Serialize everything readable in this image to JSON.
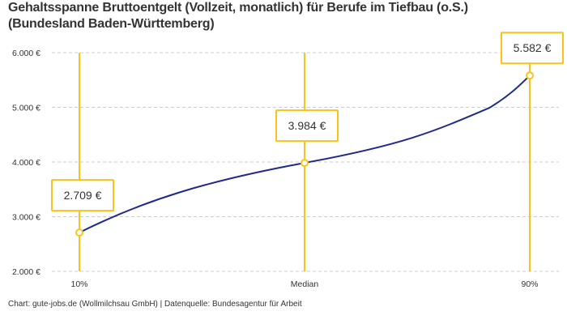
{
  "title": {
    "line1": "Gehaltsspanne Bruttoentgelt (Vollzeit, monatlich) für Berufe im Tiefbau (o.S.)",
    "line2": "(Bundesland Baden-Württemberg)"
  },
  "source": "Chart: gute-jobs.de (Wollmilchsau GmbH) | Datenquelle: Bundesagentur für Arbeit",
  "colors": {
    "line": "#1f2a8c",
    "marker": "#f9c31a",
    "grid": "#cccccc"
  },
  "chart_data": {
    "type": "line",
    "categories": [
      "10%",
      "Median",
      "90%"
    ],
    "values": [
      2709,
      3984,
      5582
    ],
    "data_labels": [
      "2.709 €",
      "3.984 €",
      "5.582 €"
    ],
    "yticks": [
      2000,
      3000,
      4000,
      5000,
      6000
    ],
    "ytick_labels": [
      "2.000 €",
      "3.000 €",
      "4.000 €",
      "5.000 €",
      "6.000 €"
    ],
    "ylim": [
      2000,
      6000
    ],
    "grid": true,
    "xlabel": "",
    "ylabel": ""
  }
}
